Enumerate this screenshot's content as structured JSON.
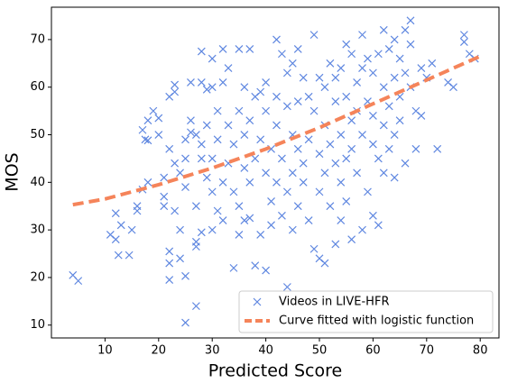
{
  "chart_data": {
    "type": "scatter",
    "xlabel": "Predicted Score",
    "ylabel": "MOS",
    "xlim": [
      0,
      83.5
    ],
    "ylim": [
      7.3,
      76.8
    ],
    "xticks": [
      10,
      20,
      30,
      40,
      50,
      60,
      70,
      80
    ],
    "yticks": [
      10,
      20,
      30,
      40,
      50,
      60,
      70
    ],
    "legend": "lower right",
    "series": [
      {
        "name": "Videos in LIVE-HFR",
        "type": "scatter",
        "marker": "x",
        "color": "#5f87e0",
        "x": [
          4,
          5,
          11,
          12,
          12,
          13,
          12.5,
          14.5,
          15,
          16,
          16,
          17,
          17,
          17.5,
          18,
          18,
          18,
          19,
          20,
          20,
          21,
          21,
          21,
          22,
          22,
          22,
          22,
          22,
          23,
          23,
          23,
          23,
          24,
          24,
          24,
          25,
          25,
          25,
          25,
          25,
          26,
          26,
          26,
          27,
          27,
          27,
          27,
          27,
          28,
          28,
          28,
          28,
          28,
          29,
          29,
          29,
          30,
          30,
          30,
          30,
          30,
          31,
          31,
          31,
          32,
          32,
          32,
          32,
          33,
          33,
          33,
          34,
          34,
          34,
          35,
          35,
          35,
          35,
          36,
          36,
          36,
          36,
          37,
          37,
          37,
          37,
          38,
          38,
          38,
          39,
          39,
          39,
          40,
          40,
          40,
          40,
          41,
          41,
          41,
          42,
          42,
          42,
          42,
          43,
          43,
          43,
          44,
          44,
          44,
          44,
          45,
          45,
          45,
          45,
          46,
          46,
          46,
          46,
          47,
          47,
          47,
          48,
          48,
          48,
          49,
          49,
          49,
          50,
          50,
          50,
          50,
          51,
          51,
          51,
          51,
          52,
          52,
          52,
          53,
          53,
          53,
          53,
          54,
          54,
          54,
          54,
          55,
          55,
          55,
          55,
          56,
          56,
          56,
          56,
          57,
          57,
          57,
          58,
          58,
          58,
          58,
          59,
          59,
          59,
          60,
          60,
          60,
          60,
          61,
          61,
          61,
          62,
          62,
          62,
          62,
          63,
          63,
          63,
          64,
          64,
          64,
          64,
          65,
          65,
          65,
          66,
          66,
          66,
          67,
          67,
          68,
          68,
          69,
          70,
          71,
          72,
          74,
          75,
          77,
          77,
          78,
          79,
          67,
          69
        ],
        "values": [
          20.5,
          19.3,
          29,
          33.5,
          28,
          31,
          24.7,
          24.7,
          30,
          35,
          34,
          38.5,
          51,
          49,
          48.8,
          53,
          40,
          55,
          53.5,
          50,
          37,
          35,
          41,
          19.5,
          23,
          25.5,
          47,
          58,
          59,
          34,
          44,
          60.5,
          42,
          30,
          24,
          10.5,
          20.3,
          39,
          45,
          49,
          53,
          50.5,
          61,
          14,
          26.5,
          27.5,
          35,
          50,
          67.5,
          61,
          29.5,
          45,
          48,
          52,
          41,
          59.5,
          66,
          60,
          45,
          38,
          30,
          55,
          49,
          34,
          32,
          68,
          61,
          40,
          64,
          52,
          44,
          22,
          38,
          48,
          68,
          55,
          35,
          29,
          32,
          60,
          50,
          43,
          68,
          53,
          40,
          32.5,
          58,
          45,
          22.5,
          59,
          29,
          49,
          61,
          55,
          21.5,
          42,
          31,
          47,
          36,
          70,
          58,
          40,
          52,
          67,
          45,
          33,
          18,
          63,
          56,
          38,
          65,
          50,
          30,
          42,
          68,
          57,
          47,
          35,
          62,
          40,
          44,
          58,
          32,
          49,
          71,
          26,
          55,
          24,
          62,
          46,
          38,
          23,
          52,
          42,
          60,
          65,
          35,
          48,
          27,
          57,
          44,
          62,
          32,
          64,
          50,
          40,
          69,
          58,
          45,
          36,
          67,
          53,
          28,
          47,
          61,
          42,
          55,
          71,
          30,
          50,
          64,
          66,
          38,
          57,
          63,
          33,
          48,
          54,
          31,
          67,
          45,
          60,
          42,
          52,
          72,
          68,
          56,
          47,
          70,
          62,
          50,
          41,
          66,
          58,
          53,
          72,
          63,
          44,
          60,
          69,
          55,
          47,
          64,
          62,
          65,
          47,
          61,
          60,
          71,
          69.5,
          67,
          66,
          74,
          54
        ]
      },
      {
        "name": "Curve fitted with logistic function",
        "type": "line",
        "dashed": true,
        "color": "#f5845a",
        "x": [
          4,
          10,
          20,
          30,
          40,
          50,
          60,
          70,
          80
        ],
        "values": [
          35.3,
          36.5,
          39.5,
          43,
          47,
          51.5,
          56.5,
          61.5,
          66.5
        ]
      }
    ]
  }
}
